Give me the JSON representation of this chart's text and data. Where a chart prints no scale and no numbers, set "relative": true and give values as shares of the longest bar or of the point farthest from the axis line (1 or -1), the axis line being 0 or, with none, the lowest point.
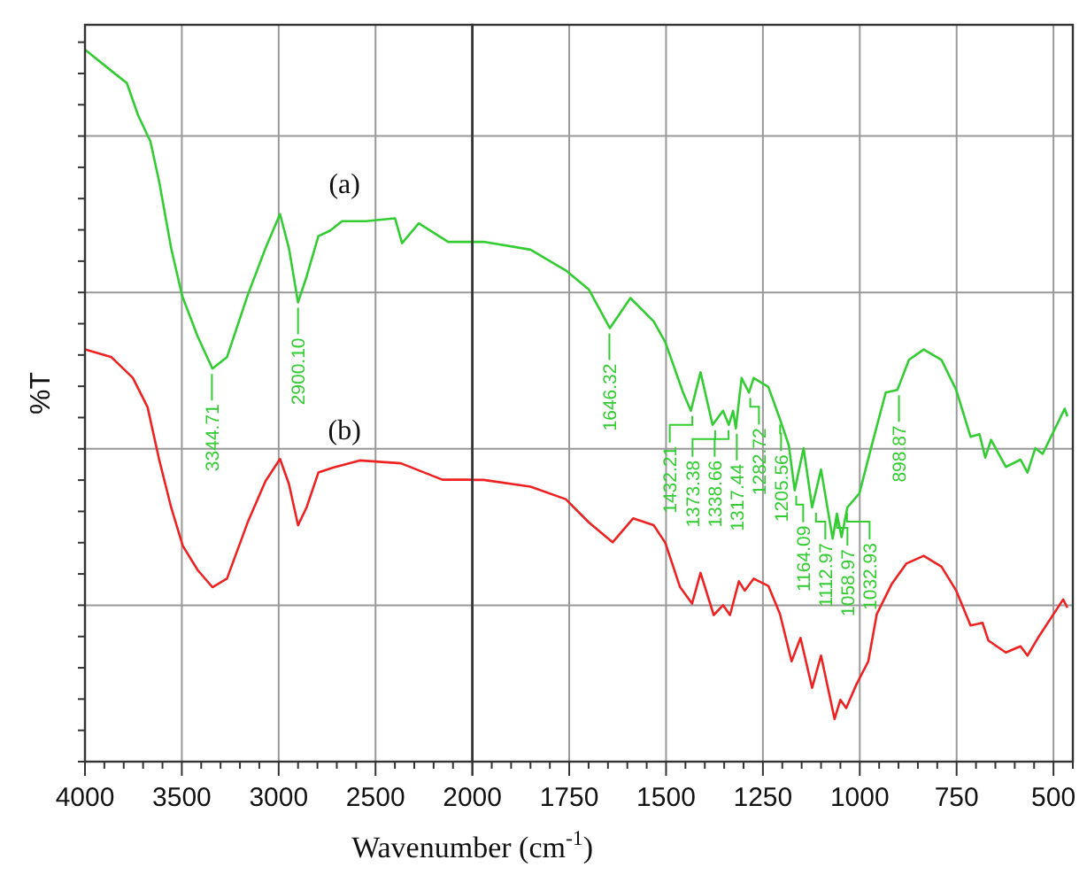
{
  "chart_data": [
    {
      "type": "line",
      "xlabel": "Wavenumber (cm$^{-1}$)",
      "ylabel": "%T",
      "relative": true,
      "grid": true,
      "tick_labels": "x",
      "line_style": "solid",
      "xlim": [
        4000,
        2000
      ],
      "xticks": [
        4000,
        3500,
        3000,
        2500,
        {
          "value": 2000,
          "label": null
        }
      ],
      "series": [
        {
          "name": "(a)",
          "color": "#33cc33",
          "x": [
            4000,
            3863,
            3784,
            3726,
            3662,
            3616,
            3555,
            3498,
            3418,
            3342,
            3267,
            3160,
            3068,
            2993,
            2947,
            2900,
            2856,
            2795,
            2733,
            2673,
            2551,
            2399,
            2363,
            2277,
            2125,
            2000
          ],
          "values": [
            1.0,
            0.97,
            0.953,
            0.908,
            0.871,
            0.813,
            0.721,
            0.654,
            0.597,
            0.552,
            0.568,
            0.655,
            0.721,
            0.769,
            0.721,
            0.645,
            0.681,
            0.738,
            0.746,
            0.759,
            0.759,
            0.763,
            0.728,
            0.756,
            0.73,
            0.73
          ]
        },
        {
          "name": "(b)",
          "color": "#ee2222",
          "x": [
            4000,
            3863,
            3753,
            3677,
            3616,
            3555,
            3495,
            3418,
            3342,
            3267,
            3160,
            3068,
            2993,
            2947,
            2900,
            2856,
            2795,
            2719,
            2582,
            2369,
            2155,
            2000
          ],
          "values": [
            0.579,
            0.568,
            0.539,
            0.498,
            0.423,
            0.357,
            0.303,
            0.269,
            0.245,
            0.257,
            0.336,
            0.394,
            0.425,
            0.39,
            0.332,
            0.357,
            0.406,
            0.413,
            0.423,
            0.419,
            0.396,
            0.396
          ]
        }
      ],
      "annotations": [
        {
          "text": "3344.71",
          "x": 3344.71,
          "y": 0.552
        },
        {
          "text": "2900.10",
          "x": 2900.1,
          "y": 0.645
        }
      ]
    },
    {
      "type": "line",
      "relative": true,
      "grid": true,
      "tick_labels": "x",
      "line_style": "solid",
      "xlim": [
        2000,
        450
      ],
      "xticks": [
        2000,
        1750,
        1500,
        1250,
        1000,
        750,
        500
      ],
      "series": [
        {
          "color": "#33cc33",
          "x": [
            2000,
            1971,
            1850,
            1759,
            1699,
            1645,
            1592,
            1532,
            1502,
            1456,
            1436,
            1411,
            1380,
            1353,
            1338,
            1327,
            1320,
            1305,
            1286,
            1274,
            1236,
            1206,
            1183,
            1168,
            1145,
            1123,
            1100,
            1070,
            1059,
            1047,
            1032,
            1001,
            971,
            933,
            903,
            873,
            835,
            789,
            751,
            714,
            691,
            676,
            661,
            623,
            585,
            567,
            547,
            528,
            471,
            464
          ],
          "values": [
            1.0,
            1.0,
            0.985,
            0.945,
            0.908,
            0.834,
            0.892,
            0.847,
            0.807,
            0.71,
            0.675,
            0.749,
            0.648,
            0.675,
            0.648,
            0.675,
            0.641,
            0.738,
            0.71,
            0.738,
            0.721,
            0.659,
            0.608,
            0.522,
            0.603,
            0.489,
            0.562,
            0.429,
            0.477,
            0.432,
            0.489,
            0.516,
            0.603,
            0.71,
            0.715,
            0.773,
            0.793,
            0.773,
            0.715,
            0.625,
            0.63,
            0.585,
            0.619,
            0.567,
            0.581,
            0.556,
            0.603,
            0.592,
            0.679,
            0.664
          ]
        },
        {
          "color": "#ee2222",
          "x": [
            2000,
            1971,
            1850,
            1759,
            1699,
            1638,
            1585,
            1532,
            1502,
            1464,
            1433,
            1411,
            1377,
            1353,
            1335,
            1312,
            1297,
            1274,
            1236,
            1206,
            1176,
            1153,
            1123,
            1100,
            1065,
            1050,
            1035,
            1009,
            978,
            956,
            918,
            880,
            835,
            789,
            751,
            714,
            683,
            668,
            623,
            585,
            567,
            540,
            475,
            464
          ],
          "values": [
            0.542,
            0.542,
            0.529,
            0.505,
            0.46,
            0.422,
            0.468,
            0.455,
            0.421,
            0.336,
            0.304,
            0.363,
            0.282,
            0.301,
            0.282,
            0.347,
            0.329,
            0.352,
            0.338,
            0.284,
            0.193,
            0.238,
            0.142,
            0.204,
            0.082,
            0.119,
            0.103,
            0.148,
            0.193,
            0.284,
            0.341,
            0.381,
            0.396,
            0.375,
            0.329,
            0.262,
            0.267,
            0.233,
            0.21,
            0.222,
            0.204,
            0.238,
            0.312,
            0.296
          ]
        }
      ],
      "annotations": [
        {
          "text": "1646.32",
          "x": 1646.32,
          "y": 0.834
        },
        {
          "text": "1432.21",
          "x": 1432.21,
          "y": 0.675
        },
        {
          "text": "1373.38",
          "x": 1373.38,
          "y": 0.648
        },
        {
          "text": "1338.66",
          "x": 1338.66,
          "y": 0.648
        },
        {
          "text": "1317.44",
          "x": 1317.44,
          "y": 0.641
        },
        {
          "text": "1282.72",
          "x": 1282.72,
          "y": 0.71
        },
        {
          "text": "1205.56",
          "x": 1205.56,
          "y": 0.659
        },
        {
          "text": "1164.09",
          "x": 1164.09,
          "y": 0.522
        },
        {
          "text": "1112.97",
          "x": 1112.97,
          "y": 0.489
        },
        {
          "text": "1058.97",
          "x": 1058.97,
          "y": 0.477
        },
        {
          "text": "1032.93",
          "x": 1032.93,
          "y": 0.489
        },
        {
          "text": "898.87",
          "x": 898.87,
          "y": 0.715
        }
      ]
    }
  ]
}
